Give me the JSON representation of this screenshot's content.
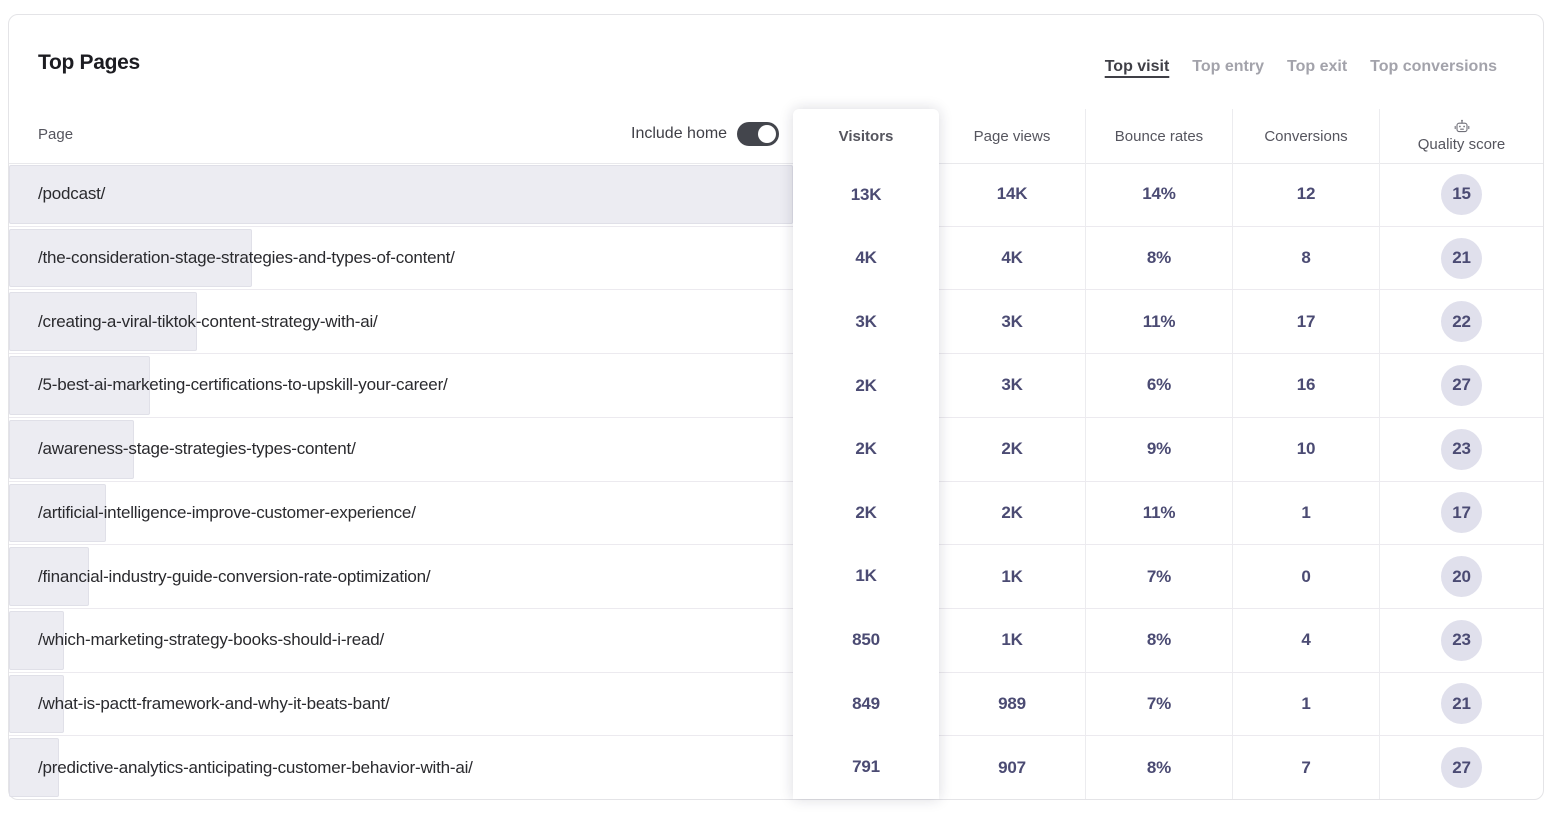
{
  "card": {
    "title": "Top Pages",
    "tabs": [
      {
        "label": "Top visit",
        "active": true
      },
      {
        "label": "Top entry",
        "active": false
      },
      {
        "label": "Top exit",
        "active": false
      },
      {
        "label": "Top conversions",
        "active": false
      }
    ],
    "table": {
      "page_header": "Page",
      "include_home_label": "Include home",
      "include_home_on": true,
      "columns": [
        "Visitors",
        "Page views",
        "Bounce rates",
        "Conversions",
        "Quality score"
      ],
      "quality_icon": "robot-icon",
      "rows": [
        {
          "page": "/podcast/",
          "bar_pct": 100,
          "visitors": "13K",
          "page_views": "14K",
          "bounce_rate": "14%",
          "conversions": "12",
          "quality_score": "15"
        },
        {
          "page": "/the-consideration-stage-strategies-and-types-of-content/",
          "bar_pct": 31,
          "visitors": "4K",
          "page_views": "4K",
          "bounce_rate": "8%",
          "conversions": "8",
          "quality_score": "21"
        },
        {
          "page": "/creating-a-viral-tiktok-content-strategy-with-ai/",
          "bar_pct": 24,
          "visitors": "3K",
          "page_views": "3K",
          "bounce_rate": "11%",
          "conversions": "17",
          "quality_score": "22"
        },
        {
          "page": "/5-best-ai-marketing-certifications-to-upskill-your-career/",
          "bar_pct": 18,
          "visitors": "2K",
          "page_views": "3K",
          "bounce_rate": "6%",
          "conversions": "16",
          "quality_score": "27"
        },
        {
          "page": "/awareness-stage-strategies-types-content/",
          "bar_pct": 15.9,
          "visitors": "2K",
          "page_views": "2K",
          "bounce_rate": "9%",
          "conversions": "10",
          "quality_score": "23"
        },
        {
          "page": "/artificial-intelligence-improve-customer-experience/",
          "bar_pct": 12.4,
          "visitors": "2K",
          "page_views": "2K",
          "bounce_rate": "11%",
          "conversions": "1",
          "quality_score": "17"
        },
        {
          "page": "/financial-industry-guide-conversion-rate-optimization/",
          "bar_pct": 10.2,
          "visitors": "1K",
          "page_views": "1K",
          "bounce_rate": "7%",
          "conversions": "0",
          "quality_score": "20"
        },
        {
          "page": "/which-marketing-strategy-books-should-i-read/",
          "bar_pct": 7,
          "visitors": "850",
          "page_views": "1K",
          "bounce_rate": "8%",
          "conversions": "4",
          "quality_score": "23"
        },
        {
          "page": "/what-is-pactt-framework-and-why-it-beats-bant/",
          "bar_pct": 7,
          "visitors": "849",
          "page_views": "989",
          "bounce_rate": "7%",
          "conversions": "1",
          "quality_score": "21"
        },
        {
          "page": "/predictive-analytics-anticipating-customer-behavior-with-ai/",
          "bar_pct": 6.4,
          "visitors": "791",
          "page_views": "907",
          "bounce_rate": "8%",
          "conversions": "7",
          "quality_score": "27"
        }
      ]
    },
    "colors": {
      "number_text": "#4b4b73",
      "badge_bg": "#e0e0ec",
      "bar_bg": "#ececf2",
      "toggle_on": "#43454c",
      "active_tab": "#3f3f46",
      "inactive_tab": "#a3a3ab"
    }
  }
}
